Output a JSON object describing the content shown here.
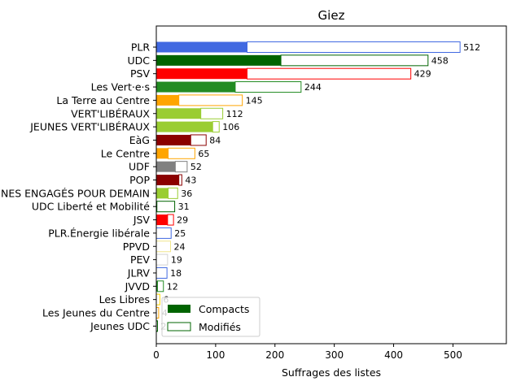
{
  "chart_data": {
    "type": "bar",
    "orientation": "horizontal",
    "stacked_overlay": true,
    "title": "Giez",
    "xlabel": "Suffrages des listes",
    "ylabel": "",
    "xlim": [
      0,
      590
    ],
    "xticks": [
      "0",
      "100",
      "200",
      "300",
      "400",
      "500"
    ],
    "categories": [
      "PLR",
      "UDC",
      "PSV",
      "Les Vert·e·s",
      "La Terre au Centre",
      "VERT'LIBÉRAUX",
      "JEUNES VERT'LIBÉRAUX",
      "EàG",
      "Le Centre",
      "UDF",
      "POP",
      "JEUNES ENGAGÉS POUR DEMAIN",
      "UDC Liberté et Mobilité",
      "JSV",
      "PLR.Énergie libérale",
      "PPVD",
      "PEV",
      "JLRV",
      "JVVD",
      "Les Libres",
      "Les Jeunes du Centre",
      "Jeunes UDC"
    ],
    "colors": [
      "#4169e1",
      "#006400",
      "#ff0000",
      "#228b22",
      "#ffa500",
      "#9acd32",
      "#9acd32",
      "#8b0000",
      "#ffa500",
      "#808080",
      "#8b0000",
      "#9acd32",
      "#006400",
      "#ff0000",
      "#4169e1",
      "#f0e68c",
      "#d3d3d3",
      "#4169e1",
      "#228b22",
      "#ffd700",
      "#ffa500",
      "#006400"
    ],
    "series": [
      {
        "name": "Compacts",
        "values": [
          153,
          210,
          153,
          133,
          38,
          75,
          95,
          58,
          20,
          32,
          38,
          20,
          1,
          19,
          0,
          0,
          0,
          0,
          2,
          0,
          0,
          0
        ]
      },
      {
        "name": "Modifiés",
        "values": [
          359,
          248,
          276,
          111,
          107,
          37,
          11,
          26,
          45,
          20,
          5,
          16,
          30,
          10,
          25,
          24,
          19,
          18,
          10,
          6,
          4,
          2
        ]
      }
    ],
    "totals": [
      "512",
      "458",
      "429",
      "244",
      "145",
      "112",
      "106",
      "84",
      "65",
      "52",
      "43",
      "36",
      "31",
      "29",
      "25",
      "24",
      "19",
      "18",
      "12",
      "6",
      "4",
      "2"
    ],
    "legend_position": "lower-left",
    "grid": false
  }
}
